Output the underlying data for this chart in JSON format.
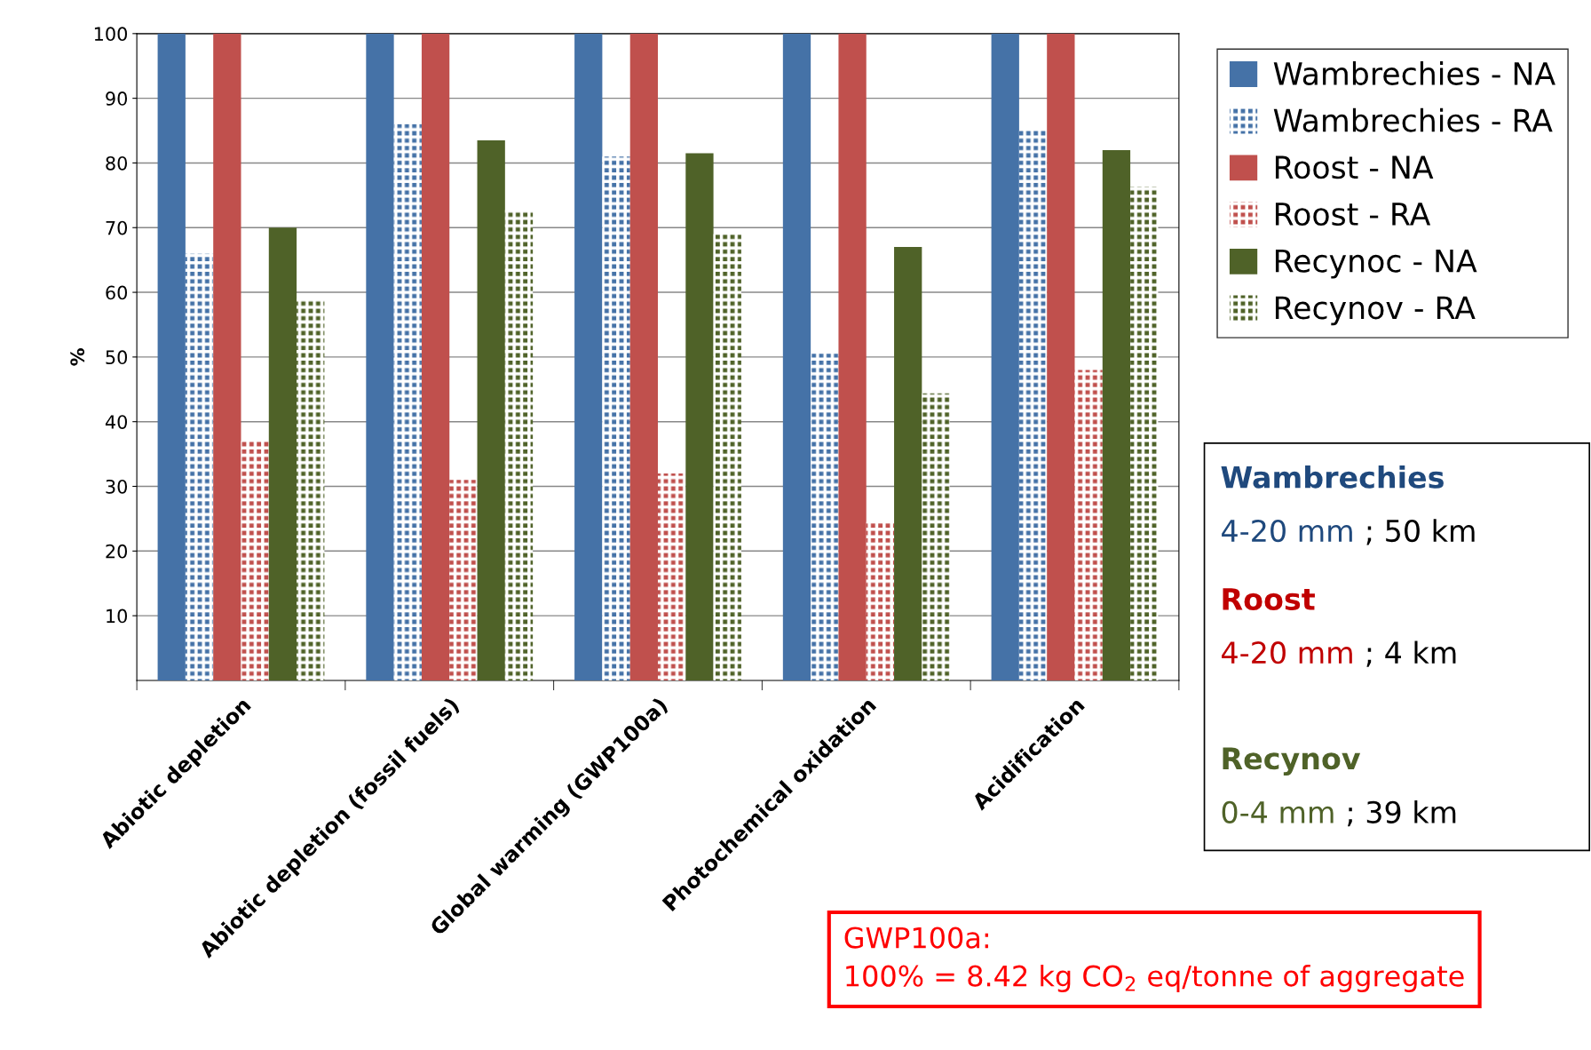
{
  "chart_data": {
    "type": "bar",
    "ylabel": "%",
    "categories": [
      "Abiotic depletion",
      "Abiotic depletion (fossil fuels)",
      "Global warming (GWP100a)",
      "Photochemical oxidation",
      "Acidification"
    ],
    "series": [
      {
        "name": "Wambrechies - NA",
        "color": "#4572a7",
        "values": [
          100,
          100,
          100,
          100,
          100
        ]
      },
      {
        "name": "Wambrechies - RA",
        "color": "#4572a7",
        "values": [
          66,
          86,
          81,
          50.5,
          85
        ]
      },
      {
        "name": "Roost - NA",
        "color": "#c0504d",
        "values": [
          100,
          100,
          100,
          100,
          100
        ]
      },
      {
        "name": "Roost - RA",
        "color": "#c0504d",
        "values": [
          37,
          31,
          32,
          24.5,
          48
        ]
      },
      {
        "name": "Recynoc - NA",
        "color": "#4f6228",
        "values": [
          70,
          83.5,
          81.5,
          67,
          82
        ]
      },
      {
        "name": "Recynov - RA",
        "color": "#4f6228",
        "values": [
          59,
          72.7,
          69,
          44.4,
          76.3
        ]
      }
    ],
    "ylim": [
      0,
      100
    ],
    "yticks": [
      10,
      20,
      30,
      40,
      50,
      60,
      70,
      80,
      90,
      100
    ],
    "grid": "y",
    "legend": "right",
    "annotations": [
      "Wambrechies",
      "4-20 mm ; 50 km",
      "Roost",
      "4-20 mm ; 4 km",
      "Recynov",
      "0-4 mm ; 39 km",
      "GWP100a:\n100% = 8.42 kg CO$_{2}$ eq/tonne of aggregate"
    ]
  }
}
